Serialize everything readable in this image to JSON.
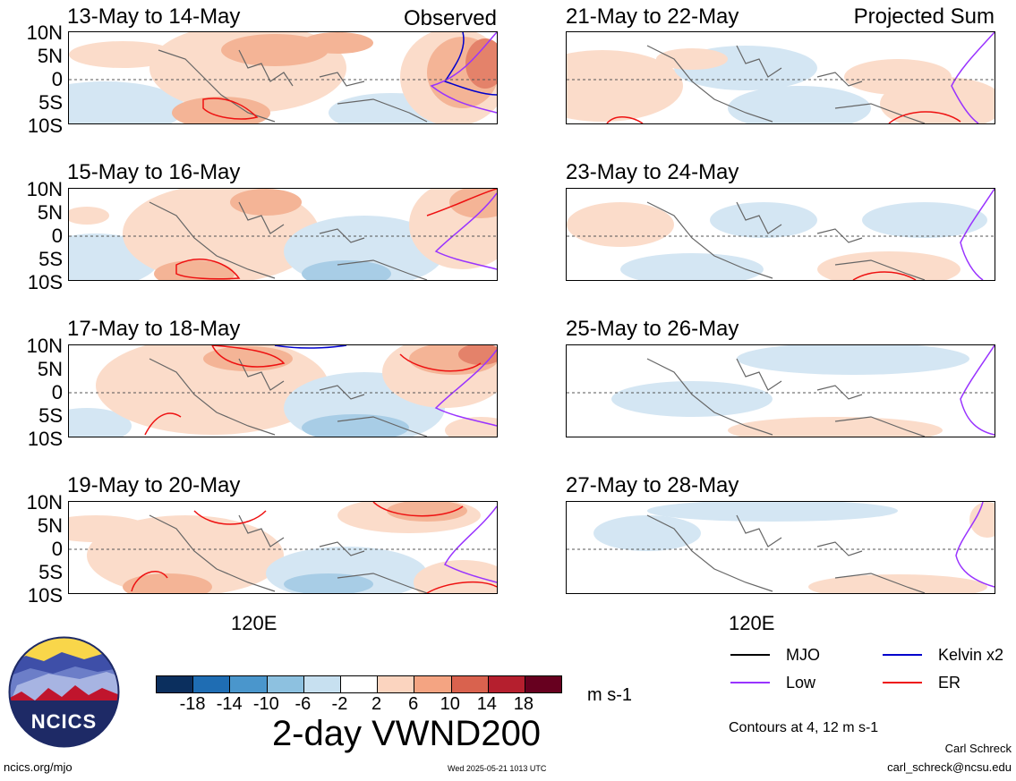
{
  "figure": {
    "title": "2-day VWND200",
    "units": "m s-1",
    "contour_note": "Contours at 4, 12 m s-1",
    "author": "Carl Schreck",
    "email": "carl_schreck@ncsu.edu",
    "website": "ncics.org/mjo",
    "timestamp": "Wed 2025-05-21 1013 UTC",
    "logo_text": "NCICS"
  },
  "columns": {
    "left_label": "Observed",
    "right_label": "Projected Sum"
  },
  "axis": {
    "lat_labels": [
      "10N",
      "5N",
      "0",
      "5S",
      "10S"
    ],
    "lon_label": "120E"
  },
  "panels_left": [
    "13-May to 14-May",
    "15-May to 16-May",
    "17-May to 18-May",
    "19-May to 20-May"
  ],
  "panels_right": [
    "21-May to 22-May",
    "23-May to 24-May",
    "25-May to 26-May",
    "27-May to 28-May"
  ],
  "colorbar": {
    "ticks": [
      "-18",
      "-14",
      "-10",
      "-6",
      "-2",
      "2",
      "6",
      "10",
      "14",
      "18"
    ],
    "colors": [
      "#0b2f5e",
      "#1f6db3",
      "#4a96cc",
      "#8dc1e0",
      "#c7e0f0",
      "#ffffff",
      "#fbd4bf",
      "#f4a482",
      "#d9624e",
      "#b51f2e",
      "#67001f"
    ]
  },
  "legend": {
    "items": [
      {
        "label": "MJO",
        "color": "#000000"
      },
      {
        "label": "Kelvin x2",
        "color": "#0000cc"
      },
      {
        "label": "Low",
        "color": "#9933ff"
      },
      {
        "label": "ER",
        "color": "#ee1111"
      }
    ]
  },
  "colors": {
    "neg_light": "#d4e6f3",
    "neg_med": "#a8cde6",
    "pos_light": "#fbdcca",
    "pos_med": "#f4b496",
    "pos_dark": "#e4826a",
    "land_outline": "#666666"
  }
}
